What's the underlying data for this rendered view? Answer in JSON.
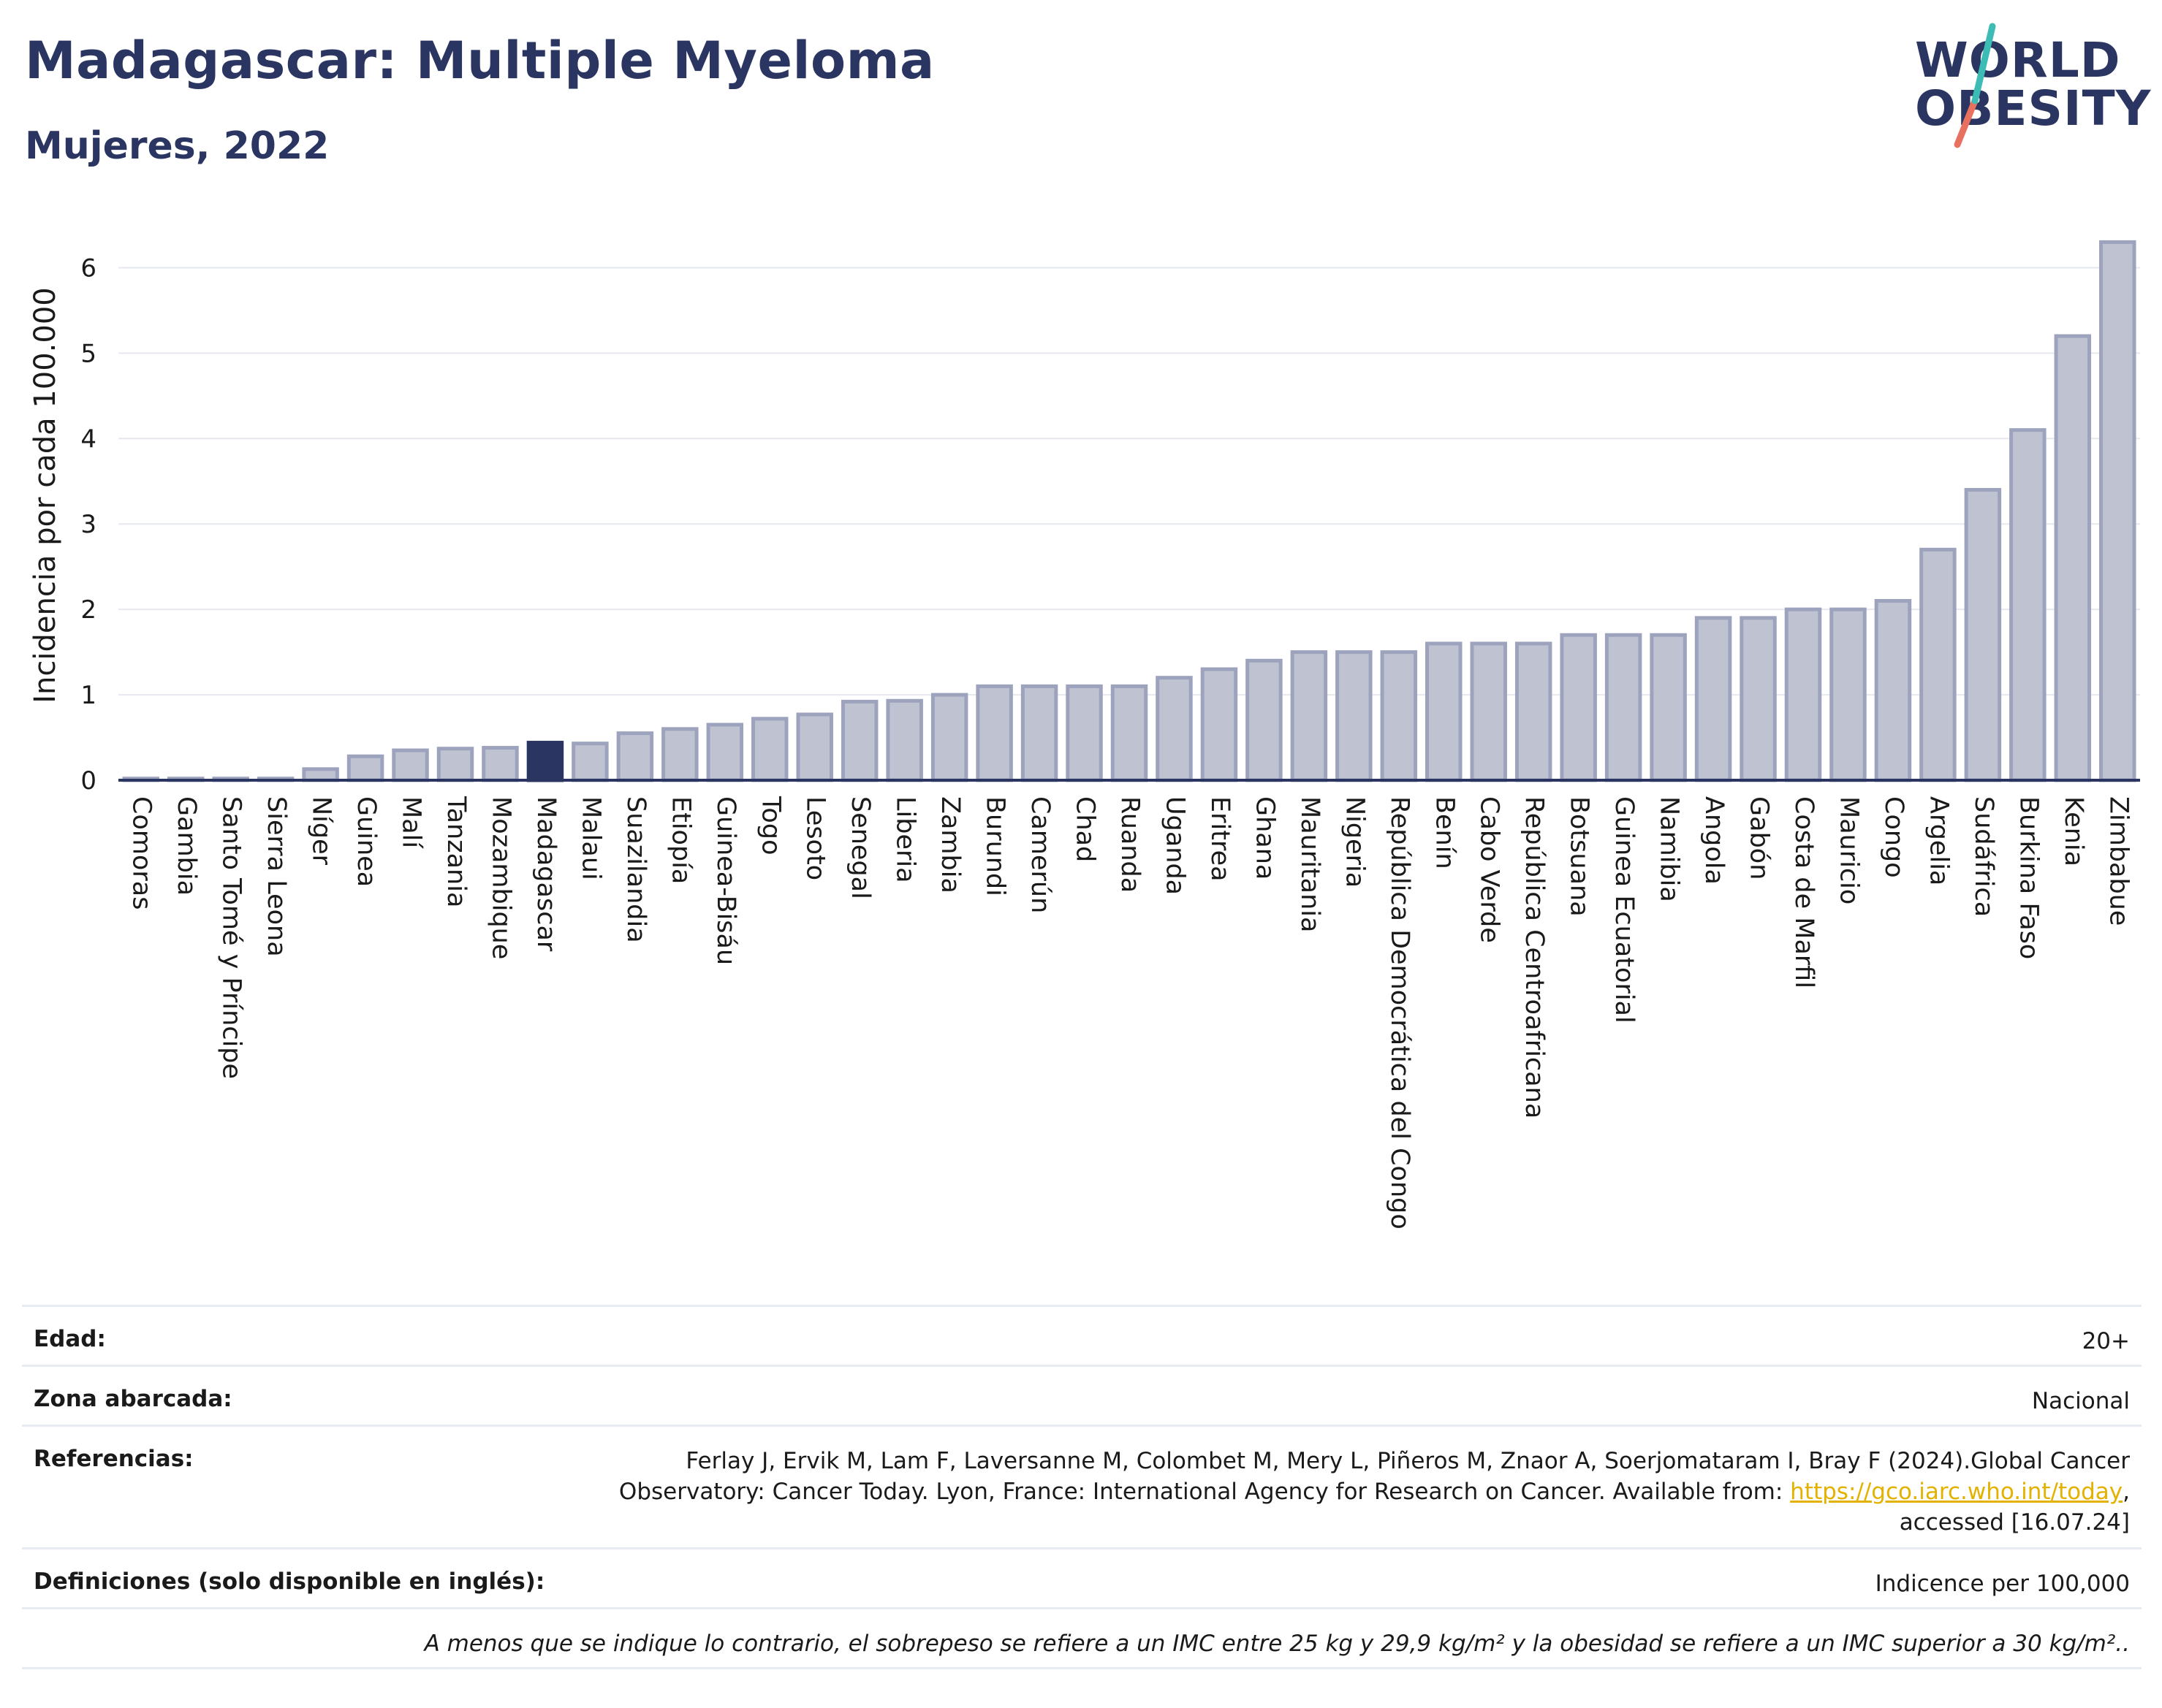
{
  "header": {
    "title": "Madagascar: Multiple Myeloma",
    "subtitle": "Mujeres, 2022"
  },
  "logo": {
    "line1": "WORLD",
    "line2": "OBESITY"
  },
  "colors": {
    "bar_fill": "#bfc3d1",
    "bar_stroke": "#9da3bd",
    "highlight": "#2a3561",
    "grid": "#e6e8ef",
    "axis": "#2a3561"
  },
  "chart_data": {
    "type": "bar",
    "ylabel": "Incidencia por cada 100.000",
    "ylim": [
      0,
      6.5
    ],
    "yticks": [
      0,
      1,
      2,
      3,
      4,
      5,
      6
    ],
    "grid": true,
    "highlight": "Madagascar",
    "categories": [
      "Comoras",
      "Gambia",
      "Santo Tomé y Príncipe",
      "Sierra Leona",
      "Níger",
      "Guinea",
      "Malí",
      "Tanzania",
      "Mozambique",
      "Madagascar",
      "Malaui",
      "Suazilandia",
      "Etiopía",
      "Guinea-Bisáu",
      "Togo",
      "Lesoto",
      "Senegal",
      "Liberia",
      "Zambia",
      "Burundi",
      "Camerún",
      "Chad",
      "Ruanda",
      "Uganda",
      "Eritrea",
      "Ghana",
      "Mauritania",
      "Nigeria",
      "República Democrática del Congo",
      "Benín",
      "Cabo Verde",
      "República Centroafricana",
      "Botsuana",
      "Guinea Ecuatorial",
      "Namibia",
      "Angola",
      "Gabón",
      "Costa de Marfil",
      "Mauricio",
      "Congo",
      "Argelia",
      "Sudáfrica",
      "Burkina Faso",
      "Kenia",
      "Zimbabue"
    ],
    "values": [
      0.02,
      0.02,
      0.02,
      0.02,
      0.13,
      0.28,
      0.35,
      0.37,
      0.38,
      0.44,
      0.43,
      0.55,
      0.6,
      0.65,
      0.72,
      0.77,
      0.92,
      0.93,
      1.0,
      1.1,
      1.1,
      1.1,
      1.1,
      1.2,
      1.3,
      1.4,
      1.5,
      1.5,
      1.5,
      1.6,
      1.6,
      1.6,
      1.7,
      1.7,
      1.7,
      1.9,
      1.9,
      2.0,
      2.0,
      2.1,
      2.7,
      3.4,
      4.1,
      5.2,
      6.3
    ]
  },
  "meta": {
    "age_label": "Edad:",
    "age_value": "20+",
    "zone_label": "Zona abarcada:",
    "zone_value": "Nacional",
    "refs_label": "Referencias:",
    "refs_line1": "Ferlay J, Ervik M, Lam F, Laversanne M, Colombet M, Mery L, Piñeros M, Znaor A, Soerjomataram I, Bray F (2024).Global Cancer",
    "refs_line2": "Observatory: Cancer Today. Lyon, France: International Agency for Research on Cancer. Available from: ",
    "refs_link": "https://gco.iarc.who.int/today",
    "refs_line2_end": ",",
    "refs_line3": "accessed [16.07.24]",
    "def_label": "Definiciones (solo disponible en inglés):",
    "def_value": "Indicence per 100,000",
    "footnote": "A menos que se indique lo contrario, el sobrepeso se refiere a un IMC entre 25 kg y 29,9 kg/m² y la obesidad se refiere a un IMC superior a 30 kg/m².."
  }
}
